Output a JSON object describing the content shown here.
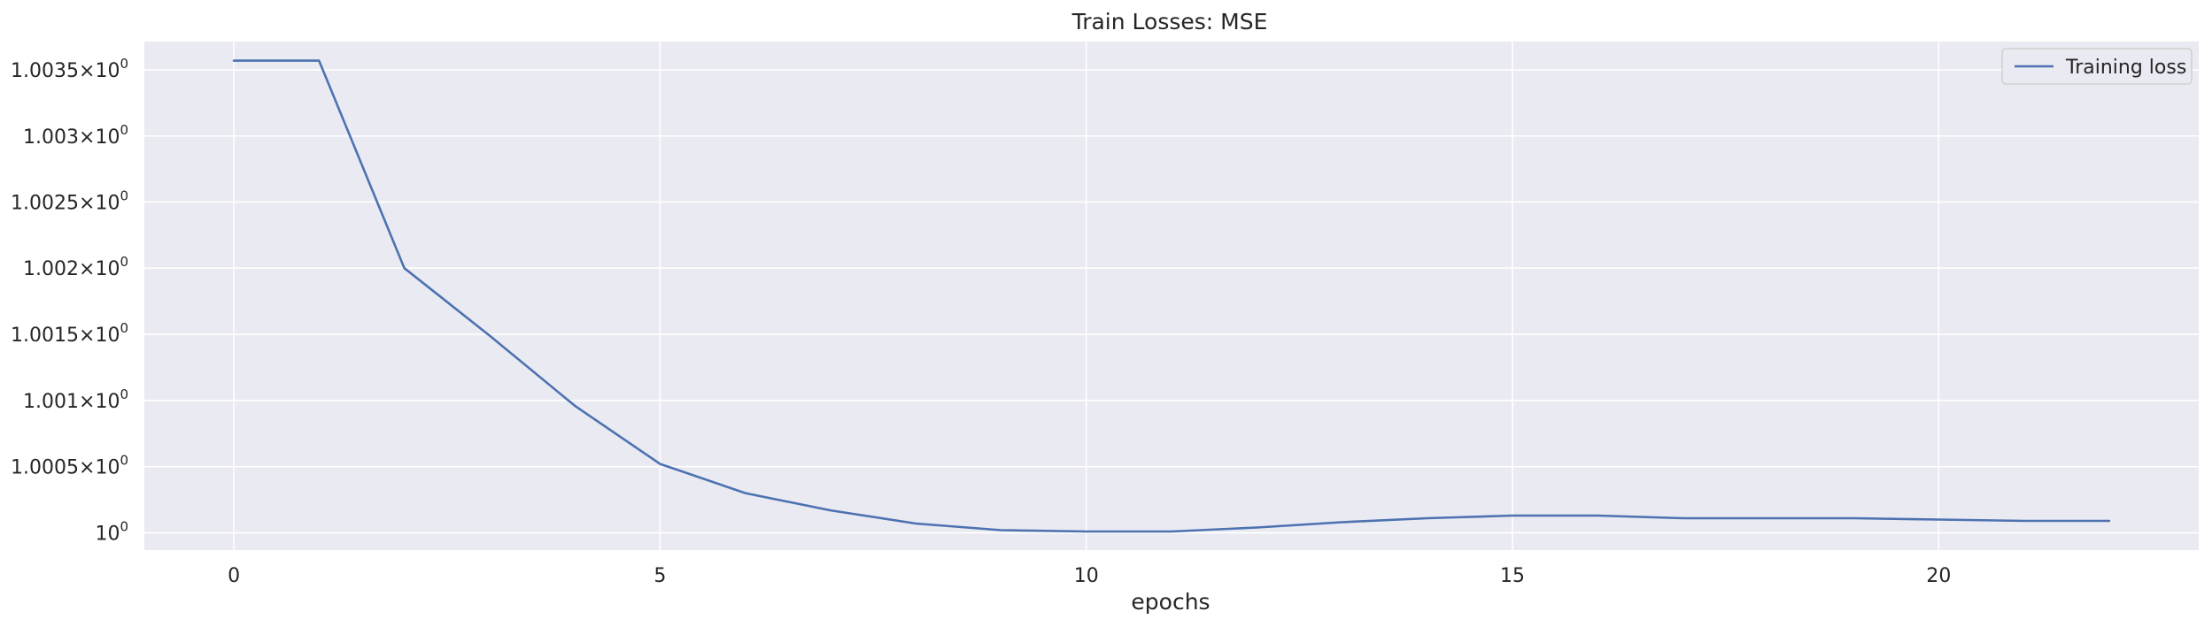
{
  "chart_data": {
    "type": "line",
    "title": "Train Losses:  MSE",
    "xlabel": "epochs",
    "ylabel": "",
    "yscale": "log",
    "grid": true,
    "legend_position": "upper-right",
    "x": [
      0,
      1,
      2,
      3,
      4,
      5,
      6,
      7,
      8,
      9,
      10,
      11,
      12,
      13,
      14,
      15,
      16,
      17,
      18,
      19,
      20,
      21,
      22
    ],
    "series": [
      {
        "name": "Training loss",
        "color": "#4c72b0",
        "values": [
          1.00357,
          1.00357,
          1.002,
          1.00149,
          1.00096,
          1.00052,
          1.0003,
          1.00017,
          1.00007,
          1.00002,
          1.00001,
          1.00001,
          1.00004,
          1.00008,
          1.00011,
          1.00013,
          1.00013,
          1.00011,
          1.00011,
          1.00011,
          1.0001,
          1.00009,
          1.00009
        ]
      }
    ],
    "xticks": [
      0,
      5,
      10,
      15,
      20
    ],
    "xtick_labels": [
      "0",
      "5",
      "10",
      "15",
      "20"
    ],
    "yticks": [
      1.0,
      1.0005,
      1.001,
      1.0015,
      1.002,
      1.0025,
      1.003,
      1.0035
    ],
    "ytick_mantissas": [
      "",
      "1.0005",
      "1.001",
      "1.0015",
      "1.002",
      "1.0025",
      "1.003",
      "1.0035"
    ],
    "ytick_base": "10",
    "ytick_exponent": "0",
    "xlim": [
      -1.05,
      23.05
    ],
    "ylim": [
      0.99987,
      1.003715
    ],
    "colors": {
      "background": "#eaeaf2",
      "grid": "#ffffff",
      "text": "#262626"
    }
  }
}
